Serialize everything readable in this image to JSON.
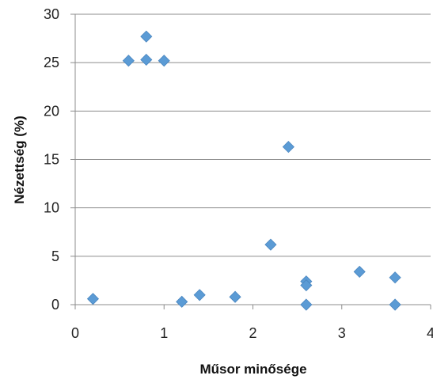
{
  "chart_data": {
    "type": "scatter",
    "title": "",
    "xlabel": "Műsor minősége",
    "ylabel": "Nézettség (%)",
    "xlim": [
      0,
      4
    ],
    "ylim": [
      0,
      30
    ],
    "x_ticks": [
      0,
      1,
      2,
      3,
      4
    ],
    "y_ticks": [
      0,
      5,
      10,
      15,
      20,
      25,
      30
    ],
    "grid": "horizontal",
    "legend": "none",
    "marker": "diamond",
    "color": "#5B9BD5",
    "series": [
      {
        "points": [
          {
            "x": 0.2,
            "y": 0.6
          },
          {
            "x": 0.6,
            "y": 25.2
          },
          {
            "x": 0.8,
            "y": 27.7
          },
          {
            "x": 0.8,
            "y": 25.3
          },
          {
            "x": 1.0,
            "y": 25.2
          },
          {
            "x": 1.2,
            "y": 0.3
          },
          {
            "x": 1.4,
            "y": 1.0
          },
          {
            "x": 1.8,
            "y": 0.8
          },
          {
            "x": 2.2,
            "y": 6.2
          },
          {
            "x": 2.4,
            "y": 16.3
          },
          {
            "x": 2.6,
            "y": 2.4
          },
          {
            "x": 2.6,
            "y": 2.0
          },
          {
            "x": 2.6,
            "y": 0.0
          },
          {
            "x": 3.2,
            "y": 3.4
          },
          {
            "x": 3.6,
            "y": 2.8
          },
          {
            "x": 3.6,
            "y": 0.0
          }
        ]
      }
    ]
  }
}
